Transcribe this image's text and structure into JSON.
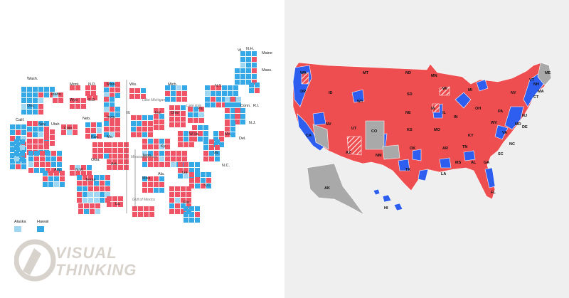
{
  "colors": {
    "rep": "#ef5366",
    "dem": "#35a9e6",
    "dem_light": "#9fd7f2",
    "rep_map": "#ef4e50",
    "dem_map": "#2e5ef0",
    "gray": "#a9a9a9",
    "bg_right": "#efefef"
  },
  "cartogram": {
    "state_labels": [
      "Wash.",
      "Idaho",
      "Mont.",
      "N.D.",
      "Minn.",
      "Wis.",
      "Mich.",
      "N.Y.",
      "Vt.",
      "N.H.",
      "Maine",
      "Mass.",
      "Conn.",
      "R.I.",
      "Ore.",
      "Wyo.",
      "S.D.",
      "Iowa",
      "Ill.",
      "Ind.",
      "Ohio",
      "Pa.",
      "N.J.",
      "Calif.",
      "Nev.",
      "Utah",
      "Colo.",
      "Neb.",
      "Kan.",
      "Mo.",
      "Ky.",
      "W.Va.",
      "Md.",
      "Del.",
      "Va.",
      "N.C.",
      "Tenn.",
      "Ark.",
      "Okla.",
      "N.M.",
      "Ariz.",
      "Texas",
      "Miss.",
      "Ala.",
      "Ga.",
      "S.C.",
      "La.",
      "Fla."
    ],
    "water_labels": [
      "Lake Michigan",
      "Lake Erie",
      "Mississippi River",
      "Gulf of Mexico"
    ],
    "legend": [
      "Alaska",
      "Hawaii"
    ]
  },
  "map": {
    "state_abbrs": [
      "WA",
      "OR",
      "ID",
      "MT",
      "ND",
      "SD",
      "WY",
      "NE",
      "MN",
      "WI",
      "MI",
      "IA",
      "IL",
      "IN",
      "OH",
      "PA",
      "NY",
      "VT",
      "ME",
      "NH",
      "MA",
      "CT",
      "NJ",
      "MD",
      "DE",
      "VA",
      "WV",
      "KY",
      "TN",
      "NC",
      "SC",
      "GA",
      "AL",
      "MS",
      "LA",
      "AR",
      "MO",
      "KS",
      "OK",
      "TX",
      "NM",
      "CO",
      "UT",
      "AZ",
      "NV",
      "CA",
      "AK",
      "HI",
      "FL"
    ]
  },
  "logo": {
    "line1": "VISUAL",
    "line2": "THINKING"
  }
}
